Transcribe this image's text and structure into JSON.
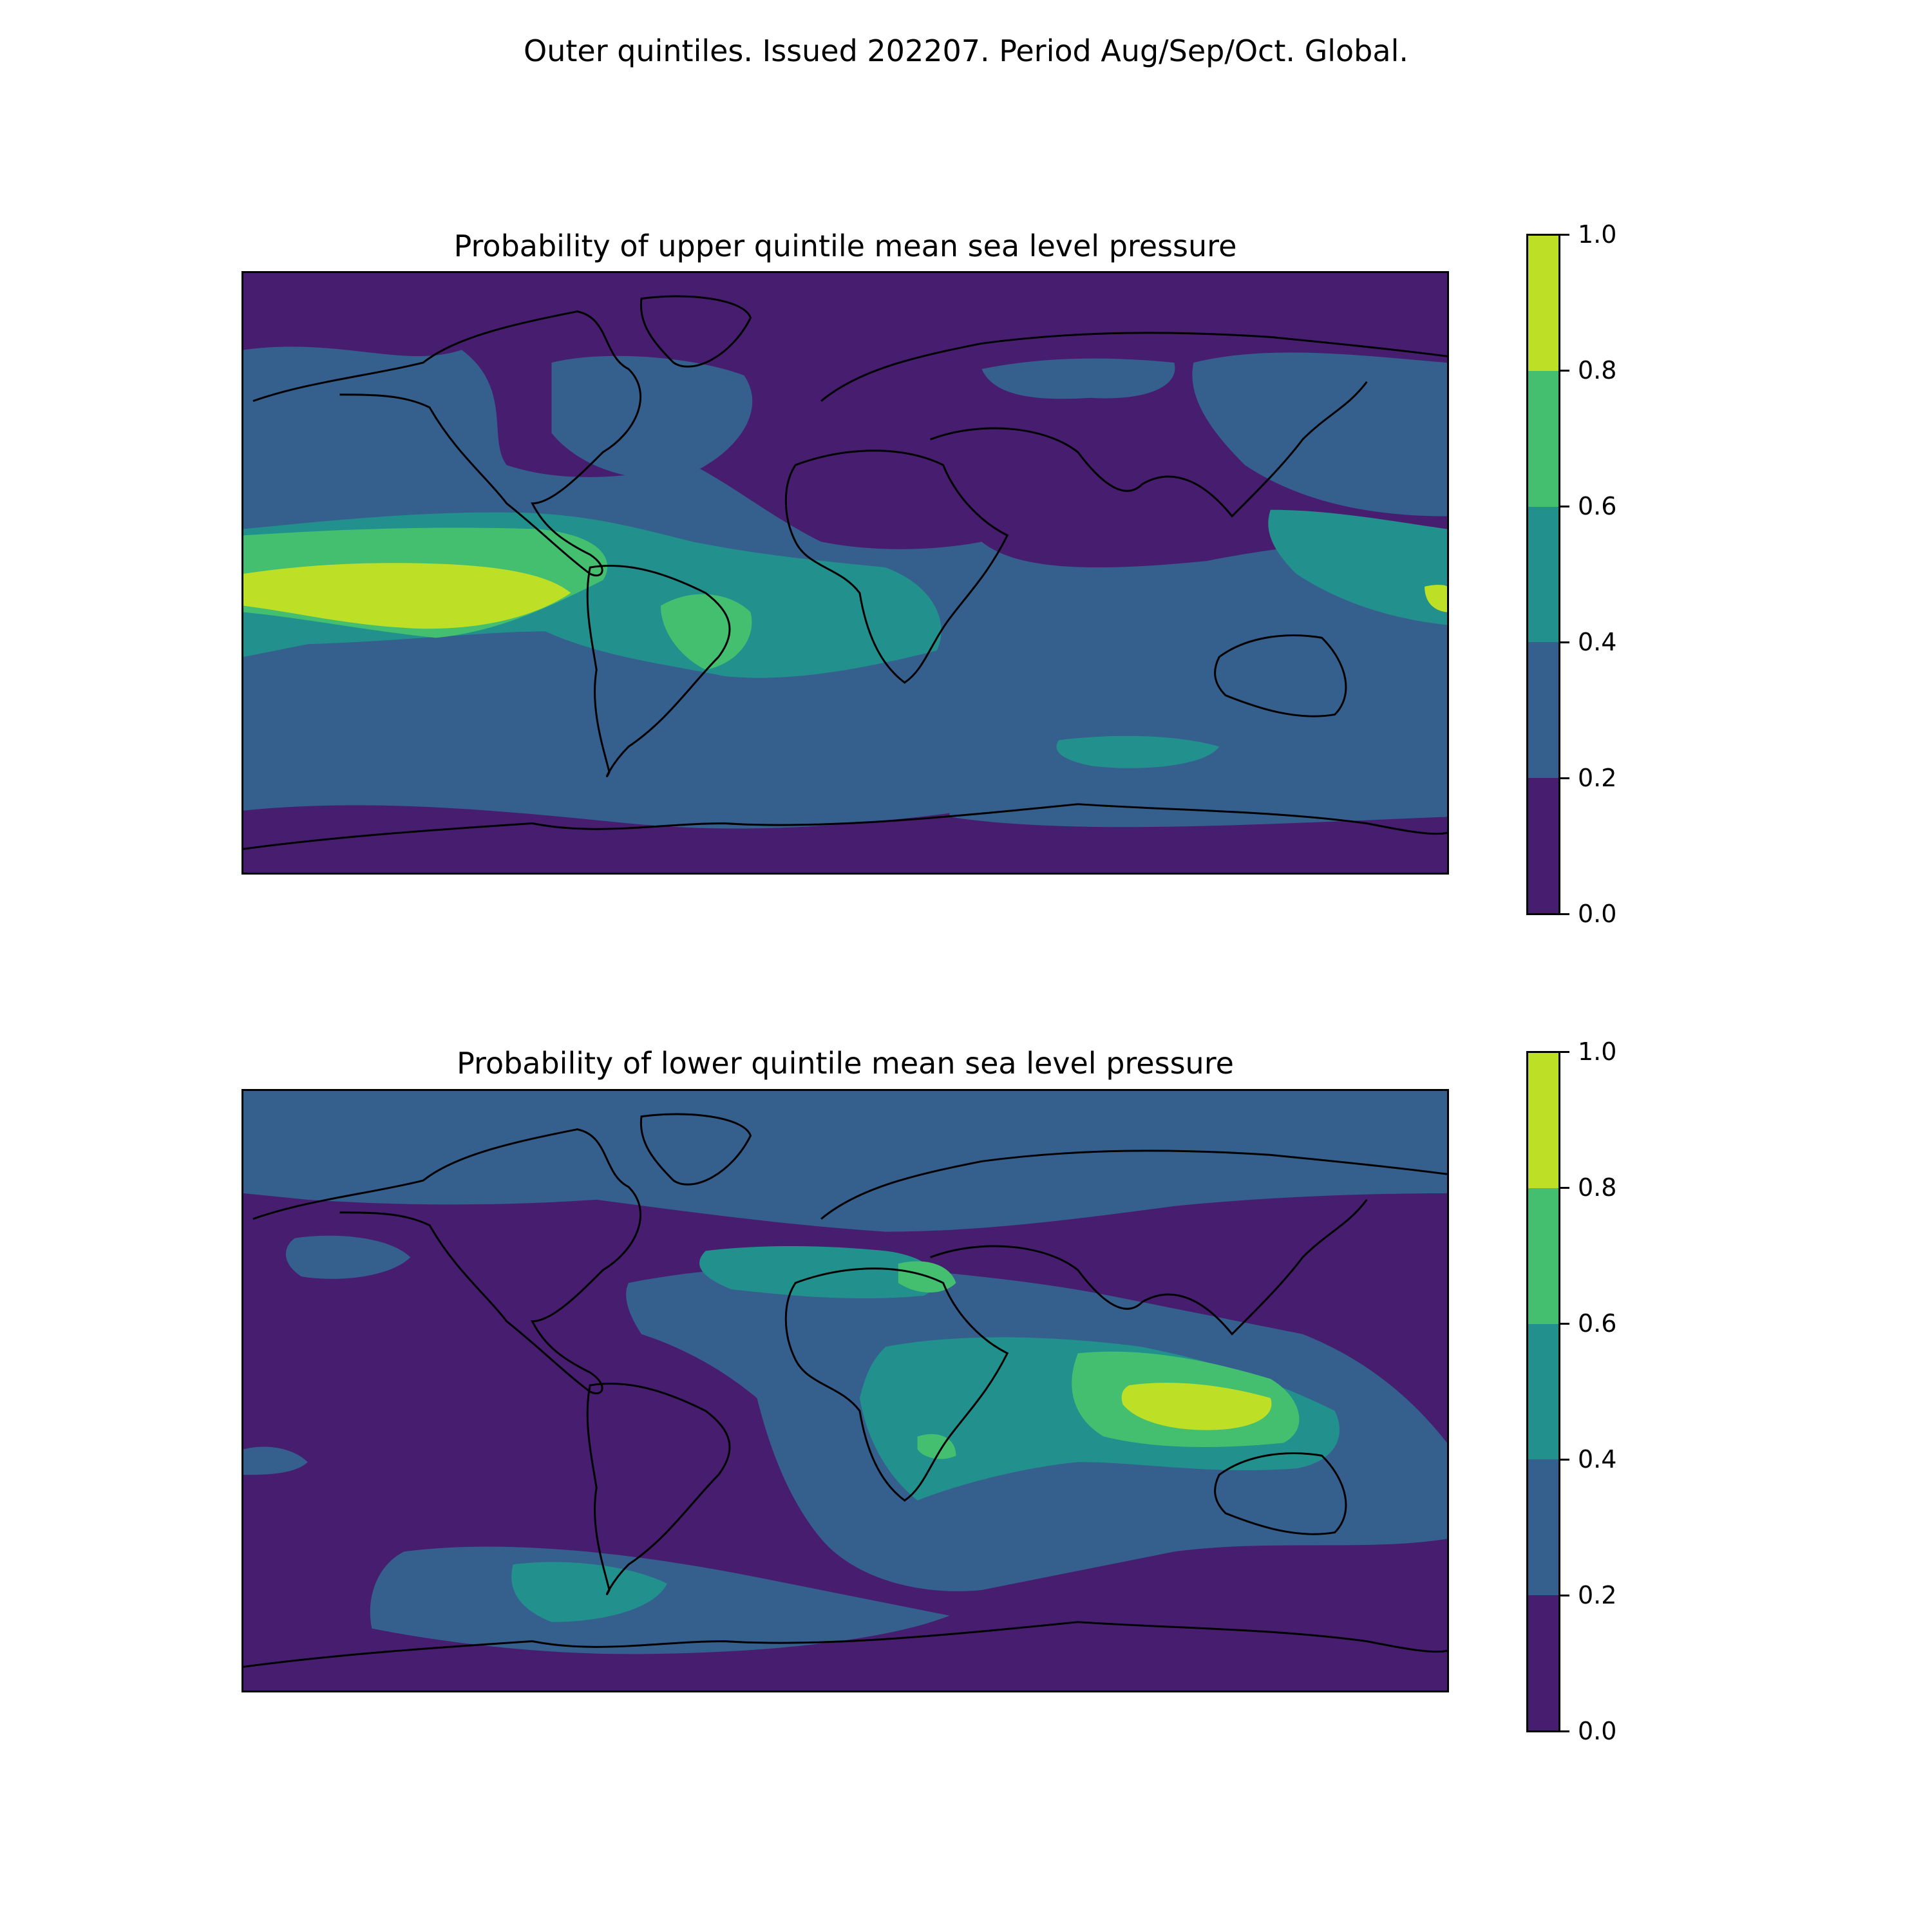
{
  "figure": {
    "suptitle": "Outer quintiles. Issued 202207. Period Aug/Sep/Oct. Global."
  },
  "colorscale": {
    "colors": [
      "#471d6f",
      "#355f8d",
      "#22908c",
      "#44bf70",
      "#bddf26"
    ],
    "tick_labels": [
      "1.0",
      "0.8",
      "0.6",
      "0.4",
      "0.2",
      "0.0"
    ]
  },
  "panels": [
    {
      "title": "Probability of upper quintile mean sea level pressure"
    },
    {
      "title": "Probability of lower quintile mean sea level pressure"
    }
  ],
  "coastline_color": "#000000"
}
